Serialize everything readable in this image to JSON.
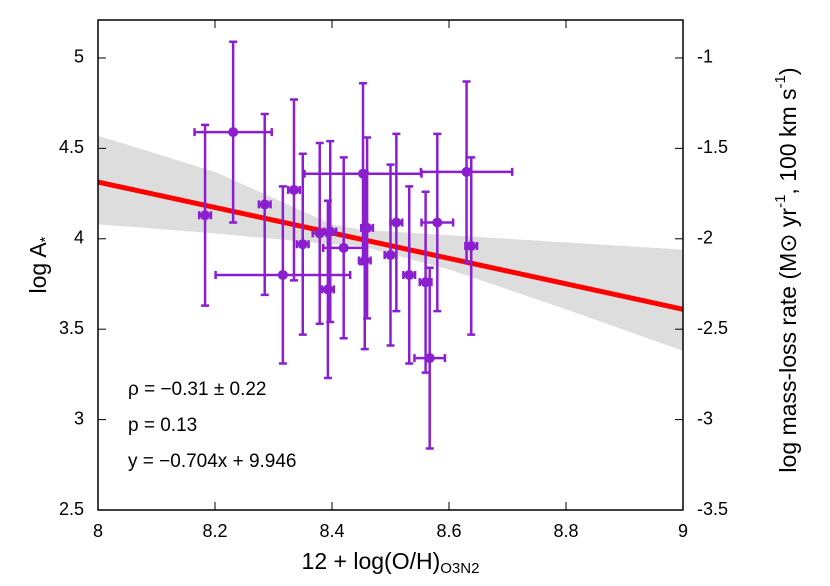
{
  "chart_data": {
    "type": "scatter",
    "xlabel": [
      {
        "text": "12 + log(O/H)"
      },
      {
        "text": "O3N2",
        "sub": true
      }
    ],
    "ylabel": [
      {
        "text": "log A"
      },
      {
        "text": "*",
        "sub": true
      }
    ],
    "y2label": [
      {
        "text": "log mass-loss rate (M⊙ yr"
      },
      {
        "text": "-1",
        "sup": true
      },
      {
        "text": ", 100 km s"
      },
      {
        "text": "-1",
        "sup": true
      },
      {
        "text": ")"
      }
    ],
    "xlim": [
      8,
      9
    ],
    "xticks": [
      8,
      8.2,
      8.4,
      8.6,
      8.8,
      9
    ],
    "ylim": [
      2.5,
      5.21
    ],
    "yticks": [
      2.5,
      3,
      3.5,
      4,
      4.5,
      5
    ],
    "y2lim": [
      -3.5,
      -0.79
    ],
    "y2ticks": [
      -3.5,
      -3,
      -2.5,
      -2,
      -1.5,
      -1
    ],
    "grid": false,
    "series": [
      {
        "color": "#8b1fd0",
        "x": [
          8.183,
          8.231,
          8.285,
          8.316,
          8.335,
          8.35,
          8.379,
          8.393,
          8.397,
          8.42,
          8.453,
          8.456,
          8.46,
          8.5,
          8.51,
          8.532,
          8.56,
          8.567,
          8.58,
          8.63,
          8.638
        ],
        "y": [
          4.13,
          4.59,
          4.19,
          3.8,
          4.27,
          3.97,
          4.03,
          3.72,
          4.04,
          3.95,
          4.36,
          3.88,
          4.06,
          3.91,
          4.09,
          3.8,
          3.76,
          3.34,
          4.09,
          4.37,
          3.96
        ],
        "xerr": [
          0.01,
          0.066,
          0.01,
          0.115,
          0.01,
          0.01,
          0.012,
          0.01,
          0.01,
          0.035,
          0.1,
          0.01,
          0.01,
          0.01,
          0.01,
          0.01,
          0.01,
          0.026,
          0.027,
          0.078,
          0.01
        ],
        "yerr": [
          0.5,
          0.5,
          0.5,
          0.49,
          0.5,
          0.5,
          0.5,
          0.49,
          0.5,
          0.5,
          0.5,
          0.49,
          0.5,
          0.5,
          0.49,
          0.49,
          0.5,
          0.5,
          0.49,
          0.5,
          0.49
        ]
      }
    ],
    "fit": {
      "color": "#ff0000",
      "x": [
        8,
        9
      ],
      "y": [
        4.314,
        3.61
      ]
    },
    "band": {
      "color": "#dddddd",
      "x": [
        8,
        8.2,
        8.4,
        8.45,
        8.6,
        8.8,
        9
      ],
      "lower": [
        4.08,
        4.03,
        3.97,
        3.96,
        3.83,
        3.61,
        3.38
      ],
      "upper": [
        4.57,
        4.37,
        4.08,
        4.05,
        4.02,
        3.98,
        3.94
      ]
    },
    "annotations": [
      {
        "text": "ρ = −0.31 ± 0.22",
        "color": "#000000"
      },
      {
        "text": "p = 0.13",
        "color": "#000000"
      },
      {
        "text": "y = −0.704x + 9.946",
        "color": "#ff0000"
      }
    ]
  }
}
